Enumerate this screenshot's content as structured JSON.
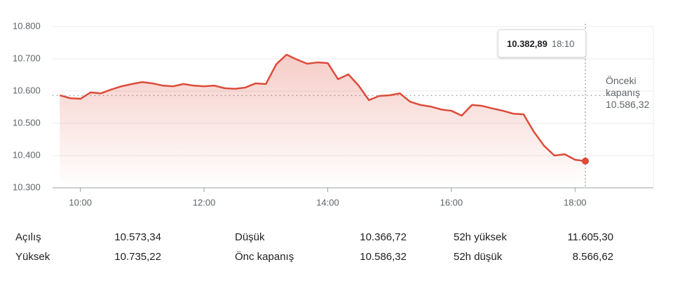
{
  "chart_data": {
    "type": "line",
    "x": [
      "09:40",
      "09:50",
      "10:00",
      "10:10",
      "10:20",
      "10:30",
      "10:40",
      "10:50",
      "11:00",
      "11:10",
      "11:20",
      "11:30",
      "11:40",
      "11:50",
      "12:00",
      "12:10",
      "12:20",
      "12:30",
      "12:40",
      "12:50",
      "13:00",
      "13:10",
      "13:20",
      "13:30",
      "13:40",
      "13:50",
      "14:00",
      "14:10",
      "14:20",
      "14:30",
      "14:40",
      "14:50",
      "15:00",
      "15:10",
      "15:20",
      "15:30",
      "15:40",
      "15:50",
      "16:00",
      "16:10",
      "16:20",
      "16:30",
      "16:40",
      "16:50",
      "17:00",
      "17:10",
      "17:20",
      "17:30",
      "17:40",
      "17:50",
      "18:00",
      "18:10"
    ],
    "series": [
      {
        "color": "#dd4b39",
        "values": [
          10587,
          10578,
          10576,
          10596,
          10593,
          10605,
          10615,
          10622,
          10628,
          10624,
          10617,
          10615,
          10622,
          10617,
          10615,
          10617,
          10609,
          10607,
          10611,
          10624,
          10622,
          10683,
          10713,
          10698,
          10685,
          10689,
          10687,
          10637,
          10652,
          10617,
          10572,
          10585,
          10587,
          10593,
          10567,
          10557,
          10552,
          10543,
          10539,
          10524,
          10557,
          10554,
          10546,
          10539,
          10530,
          10528,
          10474,
          10430,
          10400,
          10404,
          10387,
          10382.89
        ],
        "value_labels": [
          null,
          null,
          null,
          null,
          null,
          null,
          null,
          null,
          null,
          null,
          null,
          null,
          null,
          null,
          null,
          null,
          null,
          null,
          null,
          null,
          null,
          null,
          null,
          null,
          null,
          null,
          null,
          null,
          null,
          null,
          null,
          null,
          null,
          null,
          null,
          null,
          null,
          null,
          null,
          null,
          null,
          null,
          null,
          null,
          null,
          null,
          null,
          null,
          null,
          null,
          null,
          "10.382,89"
        ]
      }
    ],
    "xlim": [
      "09:33",
      "19:16"
    ],
    "xticks": [
      "10:00",
      "12:00",
      "14:00",
      "16:00",
      "18:00"
    ],
    "ylim": [
      10300,
      10800
    ],
    "yticks": [
      {
        "value": 10300,
        "label": "10.300"
      },
      {
        "value": 10400,
        "label": "10.400"
      },
      {
        "value": 10500,
        "label": "10.500"
      },
      {
        "value": 10600,
        "label": "10.600"
      },
      {
        "value": 10700,
        "label": "10.700"
      },
      {
        "value": 10800,
        "label": "10.800"
      }
    ],
    "grid": true,
    "reference_line": {
      "value": 10586.32,
      "label": "Önceki kapanış",
      "value_label": "10.586,32"
    }
  },
  "stats": [
    [
      {
        "label": "Açılış",
        "value": "10.573,34"
      },
      {
        "label": "Düşük",
        "value": "10.366,72"
      },
      {
        "label": "52h yüksek",
        "value": "11.605,30"
      }
    ],
    [
      {
        "label": "Yüksek",
        "value": "10.735,22"
      },
      {
        "label": "Önc kapanış",
        "value": "10.586,32"
      },
      {
        "label": "52h düşük",
        "value": "8.566,62"
      }
    ]
  ]
}
